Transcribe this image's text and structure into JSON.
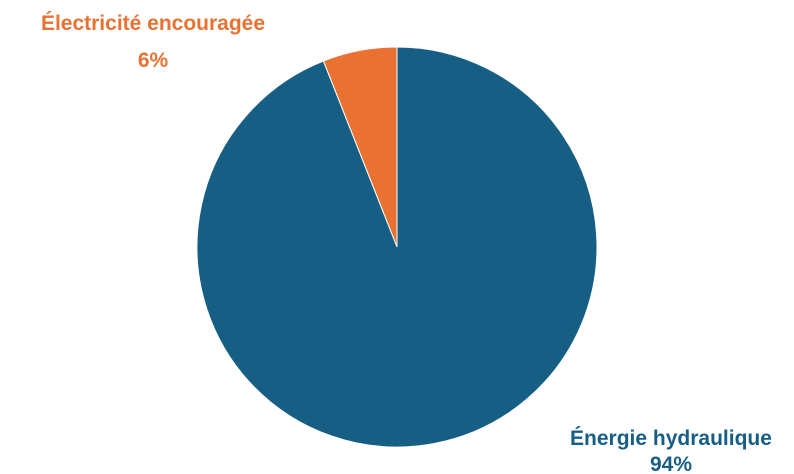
{
  "chart_data": {
    "type": "pie",
    "title": "",
    "start_angle_deg": 0,
    "direction": "counterclockwise",
    "slices": [
      {
        "label": "Électricité encouragée",
        "value": 6,
        "value_label": "6%",
        "color": "#E97132"
      },
      {
        "label": "Énergie hydraulique",
        "value": 94,
        "value_label": "94%",
        "color": "#165E83"
      }
    ]
  }
}
